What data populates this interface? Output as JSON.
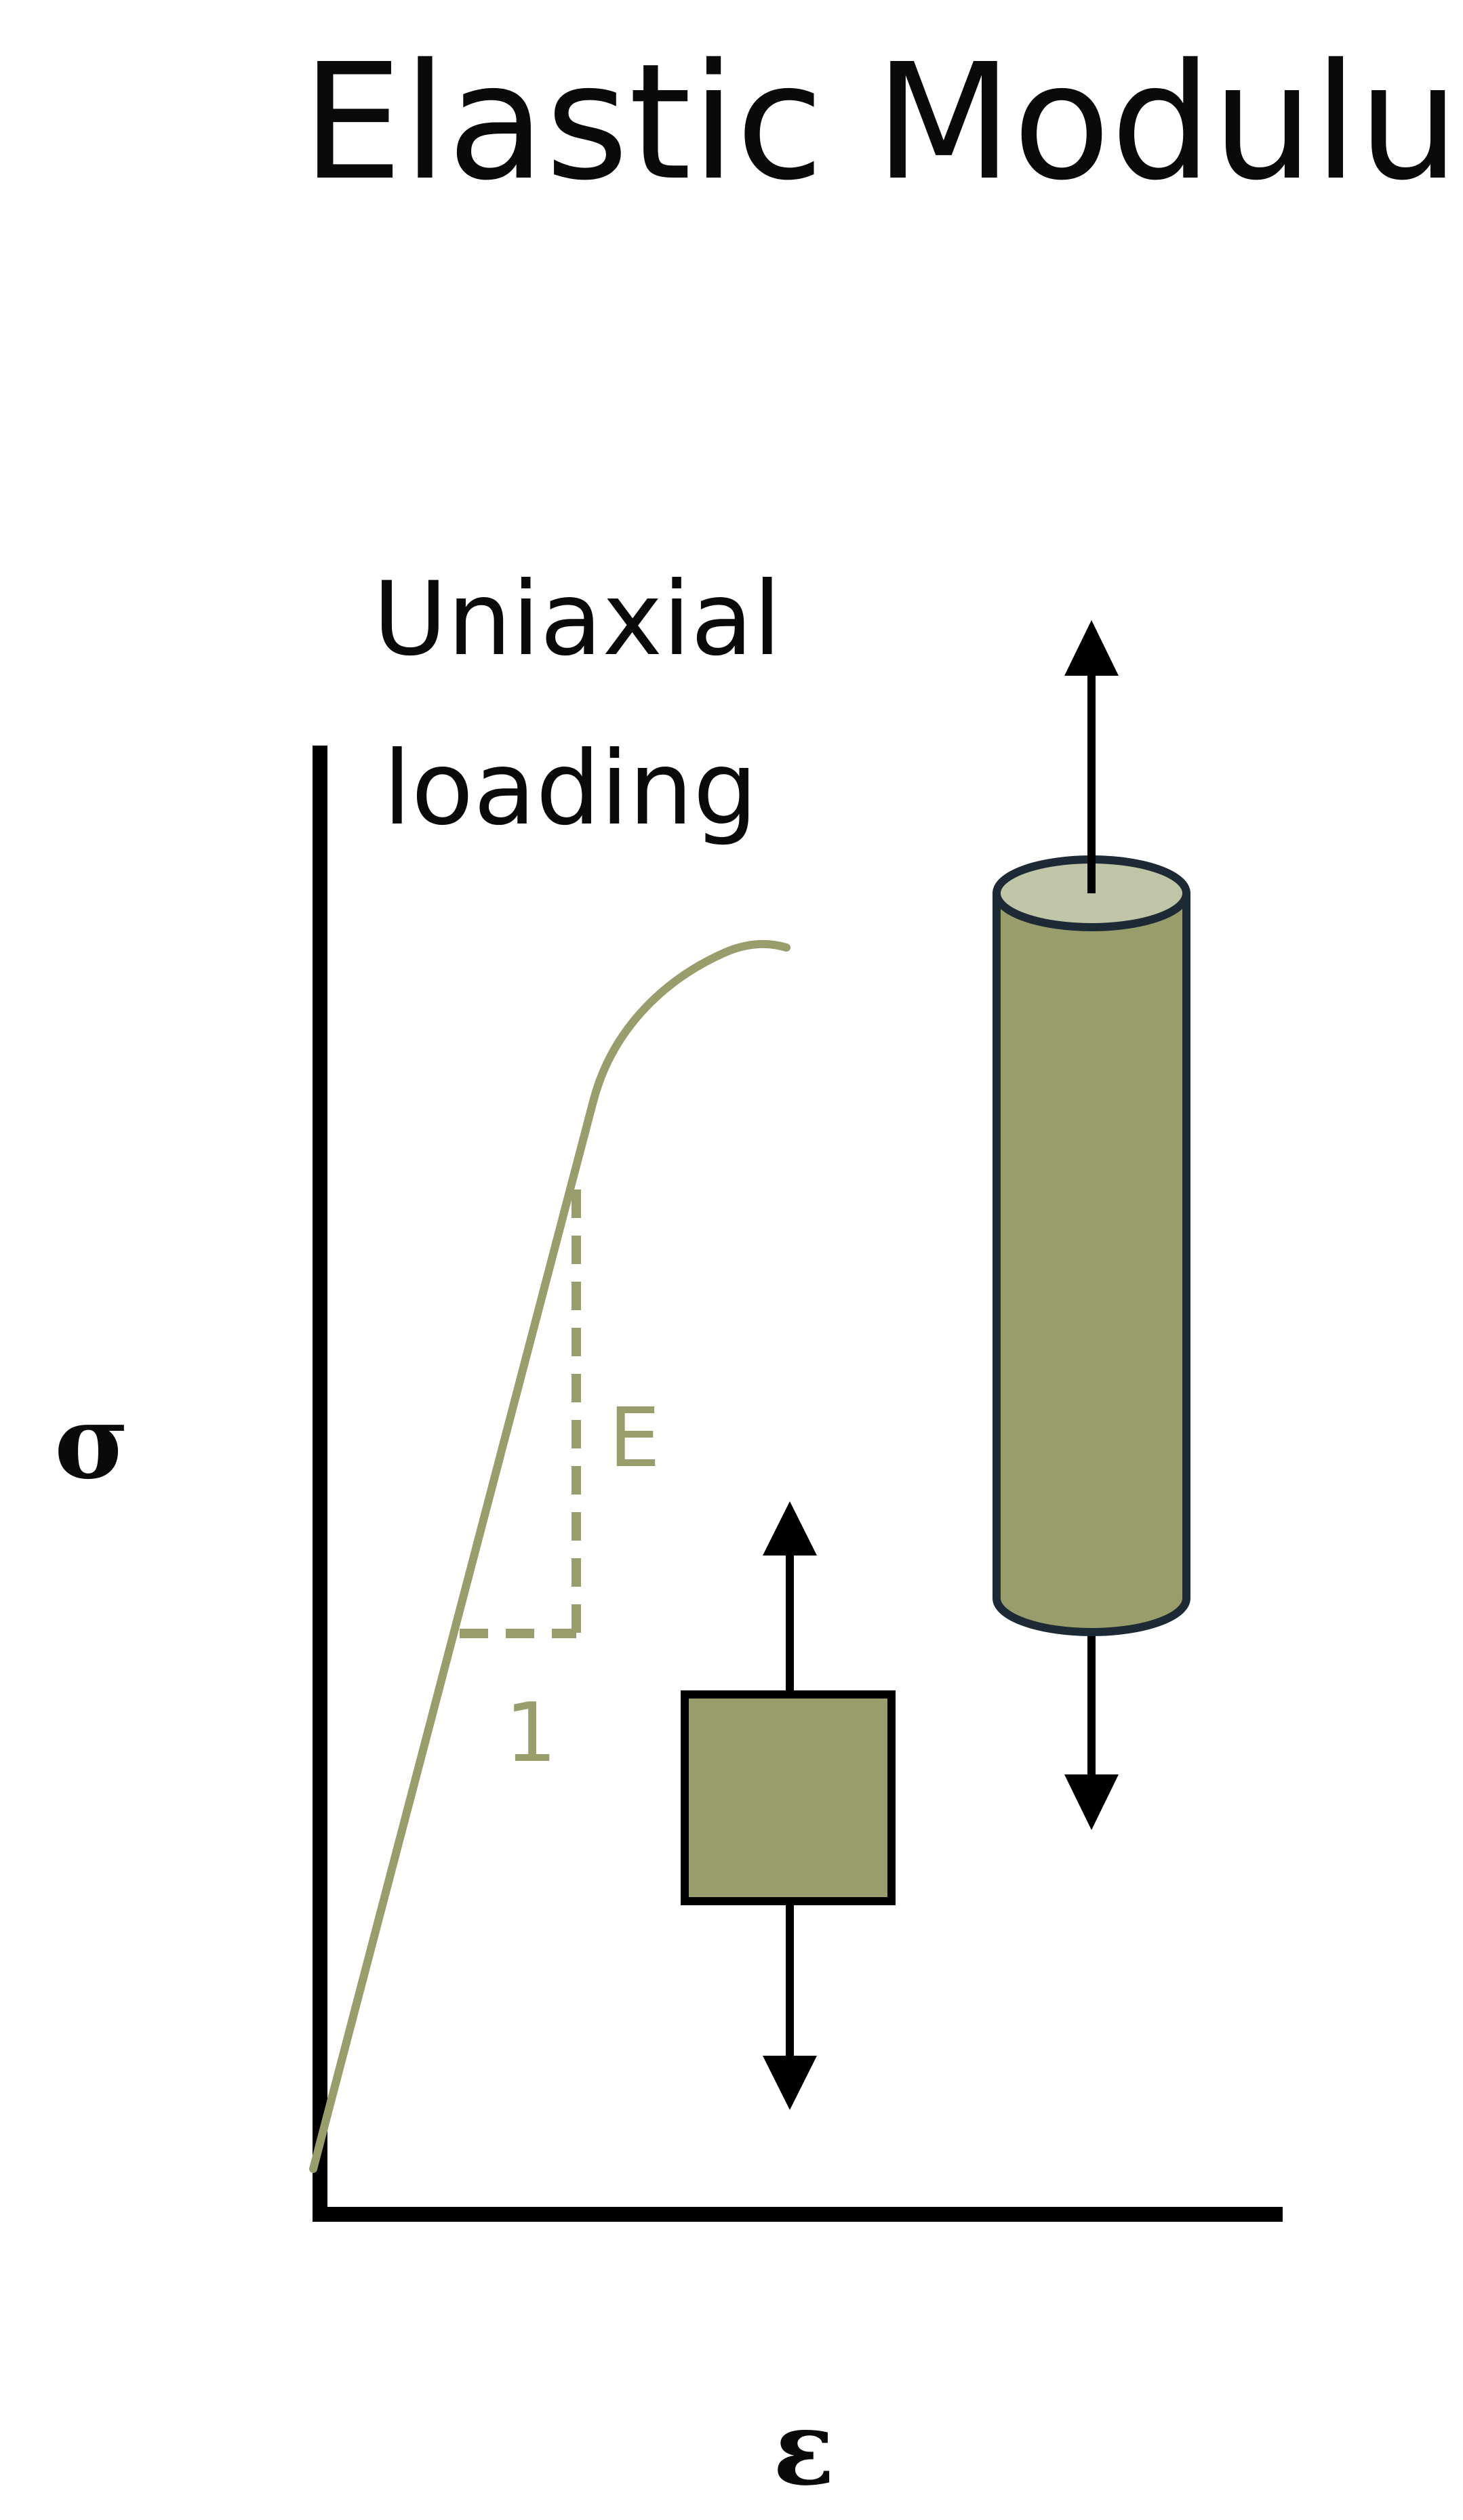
{
  "title": "Elastic Modulus",
  "caption": {
    "line1": "Uniaxial",
    "line2": "loading"
  },
  "axes": {
    "y_symbol": "σ",
    "x_symbol": "ε"
  },
  "slope": {
    "rise_label": "E",
    "run_label": "1"
  },
  "colors": {
    "olive": "#989d6b",
    "olive_light": "#c1c5a7",
    "outline": "#1d2a35",
    "ink": "#000000"
  },
  "icons": {
    "small_specimen": "square-block-icon",
    "large_specimen": "cylinder-icon",
    "force_arrows": "double-arrow-icon"
  }
}
